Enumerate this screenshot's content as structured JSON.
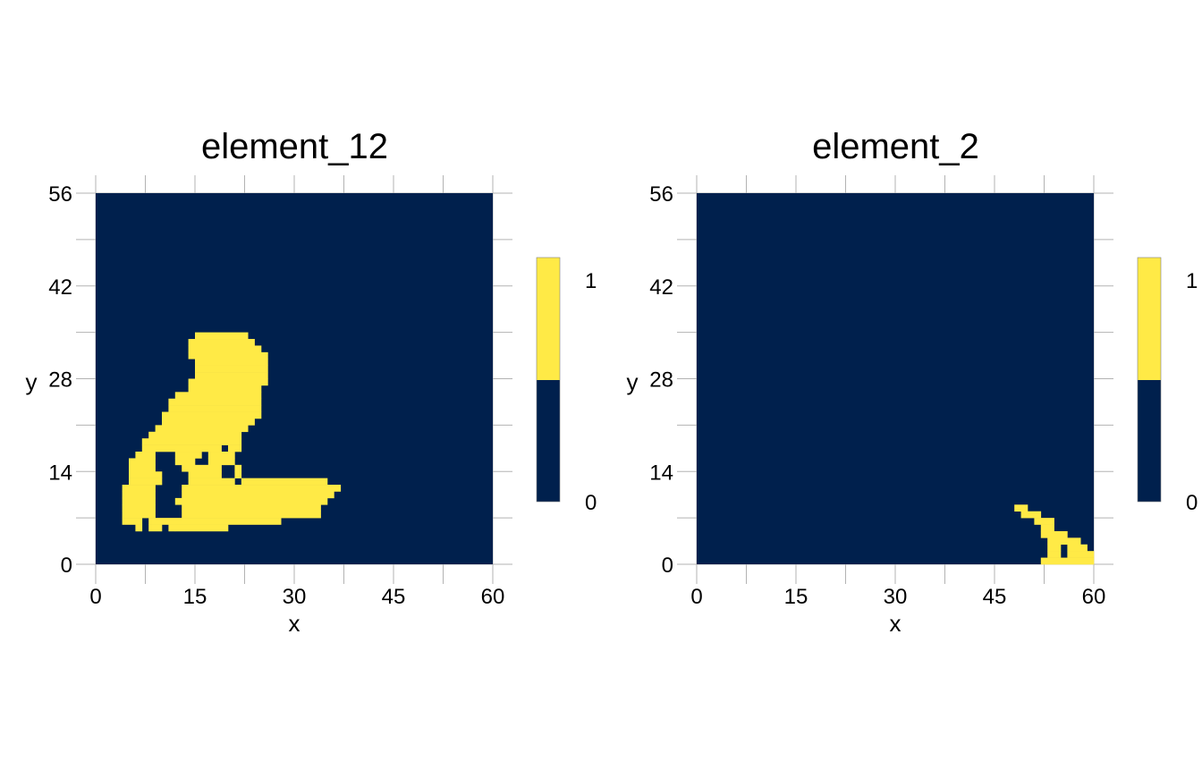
{
  "colors": {
    "zero": "#00204D",
    "one": "#FFEA46",
    "grid": "#b3b3b3",
    "tick": "#7f7f7f"
  },
  "chart_data": [
    {
      "type": "heatmap",
      "title": "element_12",
      "xlabel": "x",
      "ylabel": "y",
      "xlim": [
        0,
        60
      ],
      "ylim": [
        0,
        56
      ],
      "xticks": [
        "0",
        "15",
        "30",
        "45",
        "60"
      ],
      "yticks": [
        "0",
        "14",
        "28",
        "42",
        "56"
      ],
      "legend": {
        "placement": "right",
        "labels": [
          "1",
          "0"
        ],
        "values": [
          1,
          0
        ]
      },
      "cells_value_1_rows": [
        {
          "y": 5,
          "x": [
            [
              6,
              6
            ],
            [
              8,
              9
            ],
            [
              11,
              11
            ],
            [
              12,
              19
            ]
          ]
        },
        {
          "y": 6,
          "x": [
            [
              4,
              6
            ],
            [
              8,
              27
            ]
          ]
        },
        {
          "y": 7,
          "x": [
            [
              4,
              8
            ],
            [
              13,
              33
            ]
          ]
        },
        {
          "y": 8,
          "x": [
            [
              4,
              8
            ],
            [
              13,
              33
            ]
          ]
        },
        {
          "y": 9,
          "x": [
            [
              4,
              8
            ],
            [
              12,
              34
            ]
          ]
        },
        {
          "y": 10,
          "x": [
            [
              4,
              8
            ],
            [
              13,
              35
            ]
          ]
        },
        {
          "y": 11,
          "x": [
            [
              4,
              8
            ],
            [
              13,
              36
            ]
          ]
        },
        {
          "y": 12,
          "x": [
            [
              5,
              9
            ],
            [
              14,
              20
            ],
            [
              22,
              34
            ]
          ]
        },
        {
          "y": 13,
          "x": [
            [
              5,
              9
            ],
            [
              14,
              18
            ],
            [
              21,
              21
            ]
          ]
        },
        {
          "y": 14,
          "x": [
            [
              5,
              8
            ],
            [
              13,
              18
            ],
            [
              21,
              21
            ]
          ]
        },
        {
          "y": 15,
          "x": [
            [
              5,
              8
            ],
            [
              12,
              14
            ],
            [
              17,
              20
            ]
          ]
        },
        {
          "y": 16,
          "x": [
            [
              6,
              8
            ],
            [
              12,
              15
            ],
            [
              17,
              20
            ]
          ]
        },
        {
          "y": 17,
          "x": [
            [
              7,
              18
            ],
            [
              20,
              21
            ]
          ]
        },
        {
          "y": 18,
          "x": [
            [
              7,
              21
            ]
          ]
        },
        {
          "y": 19,
          "x": [
            [
              8,
              21
            ]
          ]
        },
        {
          "y": 20,
          "x": [
            [
              9,
              22
            ]
          ]
        },
        {
          "y": 21,
          "x": [
            [
              10,
              23
            ]
          ]
        },
        {
          "y": 22,
          "x": [
            [
              10,
              24
            ]
          ]
        },
        {
          "y": 23,
          "x": [
            [
              11,
              24
            ]
          ]
        },
        {
          "y": 24,
          "x": [
            [
              11,
              24
            ]
          ]
        },
        {
          "y": 25,
          "x": [
            [
              12,
              24
            ]
          ]
        },
        {
          "y": 26,
          "x": [
            [
              14,
              24
            ]
          ]
        },
        {
          "y": 27,
          "x": [
            [
              14,
              25
            ]
          ]
        },
        {
          "y": 28,
          "x": [
            [
              15,
              25
            ]
          ]
        },
        {
          "y": 29,
          "x": [
            [
              15,
              25
            ]
          ]
        },
        {
          "y": 30,
          "x": [
            [
              15,
              25
            ]
          ]
        },
        {
          "y": 31,
          "x": [
            [
              14,
              25
            ]
          ]
        },
        {
          "y": 32,
          "x": [
            [
              14,
              24
            ]
          ]
        },
        {
          "y": 33,
          "x": [
            [
              14,
              23
            ]
          ]
        },
        {
          "y": 34,
          "x": [
            [
              15,
              22
            ]
          ]
        }
      ]
    },
    {
      "type": "heatmap",
      "title": "element_2",
      "xlabel": "x",
      "ylabel": "y",
      "xlim": [
        0,
        60
      ],
      "ylim": [
        0,
        56
      ],
      "xticks": [
        "0",
        "15",
        "30",
        "45",
        "60"
      ],
      "yticks": [
        "0",
        "14",
        "28",
        "42",
        "56"
      ],
      "legend": {
        "placement": "right",
        "labels": [
          "1",
          "0"
        ],
        "values": [
          1,
          0
        ]
      },
      "cells_value_1_rows": [
        {
          "y": 0,
          "x": [
            [
              52,
              59
            ]
          ]
        },
        {
          "y": 1,
          "x": [
            [
              53,
              54
            ],
            [
              56,
              59
            ]
          ]
        },
        {
          "y": 2,
          "x": [
            [
              53,
              54
            ],
            [
              56,
              58
            ]
          ]
        },
        {
          "y": 3,
          "x": [
            [
              53,
              57
            ]
          ]
        },
        {
          "y": 4,
          "x": [
            [
              52,
              55
            ]
          ]
        },
        {
          "y": 5,
          "x": [
            [
              52,
              53
            ]
          ]
        },
        {
          "y": 6,
          "x": [
            [
              51,
              53
            ]
          ]
        },
        {
          "y": 7,
          "x": [
            [
              49,
              51
            ]
          ]
        },
        {
          "y": 8,
          "x": [
            [
              48,
              49
            ]
          ]
        }
      ]
    }
  ]
}
